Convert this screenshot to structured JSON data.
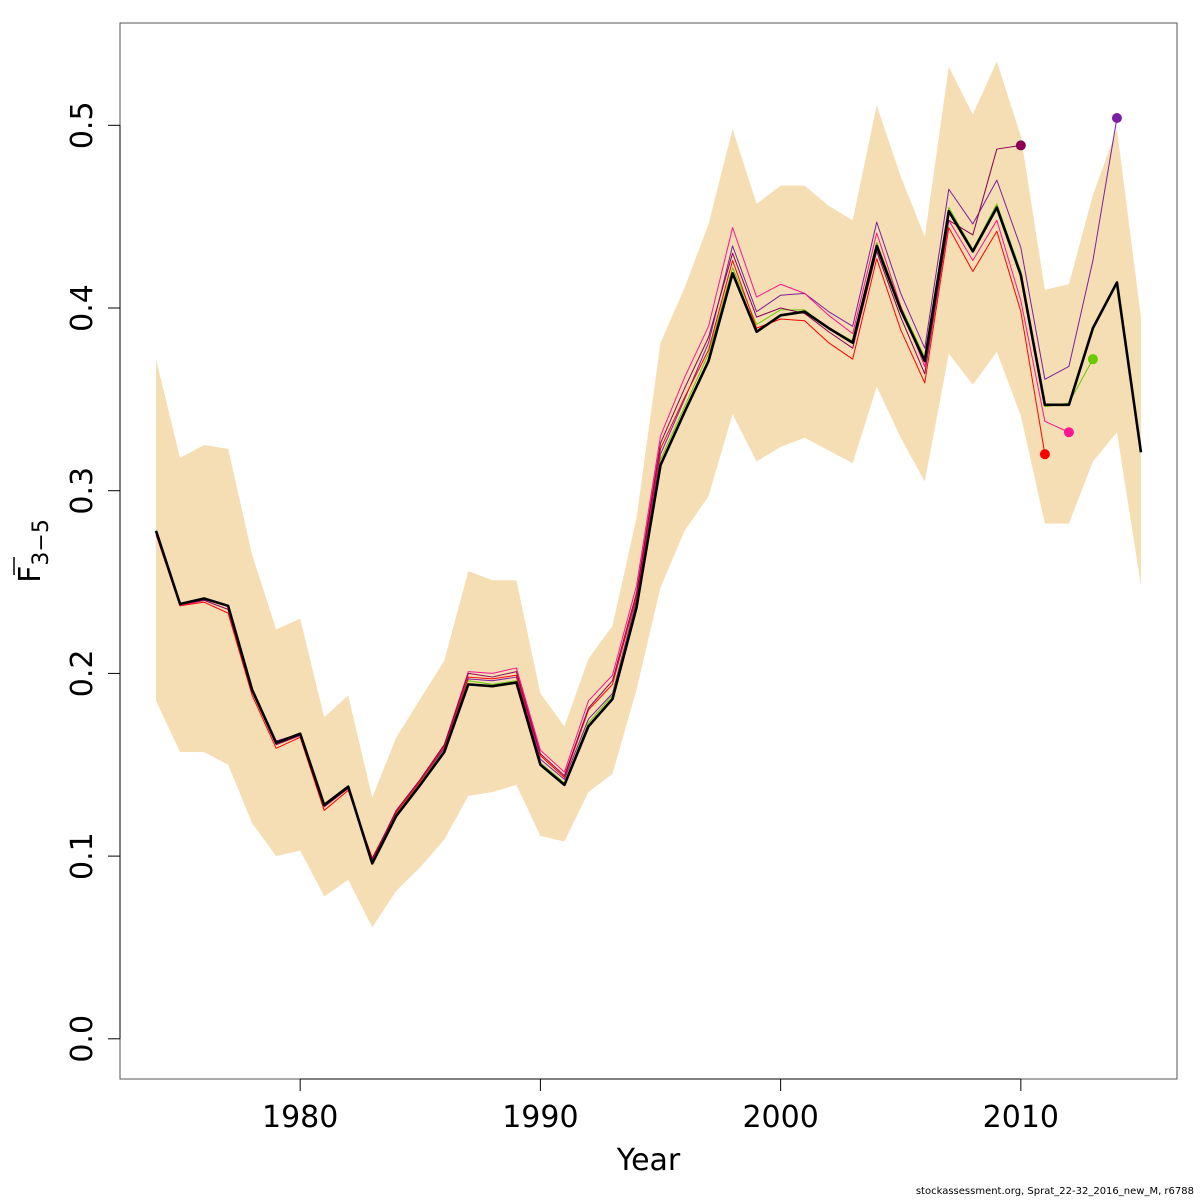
{
  "chart_data": {
    "type": "line",
    "title": "",
    "xlabel": "Year",
    "ylabel_main": "F",
    "ylabel_sub": "3−5",
    "xlim": [
      1972.5,
      2016.5
    ],
    "ylim": [
      -0.022,
      0.556
    ],
    "x_ticks": [
      1980,
      1990,
      2000,
      2010
    ],
    "x_tick_labels": [
      "1980",
      "1990",
      "2000",
      "2010"
    ],
    "y_ticks": [
      0.0,
      0.1,
      0.2,
      0.3,
      0.4,
      0.5
    ],
    "y_tick_labels": [
      "0.0",
      "0.1",
      "0.2",
      "0.3",
      "0.4",
      "0.5"
    ],
    "grid": false,
    "colors": {
      "band": "#f5deb3",
      "main": "#000000",
      "retro_2014": "#7b1fa2",
      "retro_2013": "#66cc00",
      "retro_2012": "#ff1493",
      "retro_2011": "#ff0000",
      "retro_2010": "#8b0057"
    },
    "confidence_band": {
      "x": [
        1974,
        1975,
        1976,
        1977,
        1978,
        1979,
        1980,
        1981,
        1982,
        1983,
        1984,
        1985,
        1986,
        1987,
        1988,
        1989,
        1990,
        1991,
        1992,
        1993,
        1994,
        1995,
        1996,
        1997,
        1998,
        1999,
        2000,
        2001,
        2002,
        2003,
        2004,
        2005,
        2006,
        2007,
        2008,
        2009,
        2010,
        2011,
        2012,
        2013,
        2014,
        2015
      ],
      "upper": [
        0.372,
        0.318,
        0.325,
        0.323,
        0.265,
        0.224,
        0.23,
        0.176,
        0.188,
        0.132,
        0.165,
        0.186,
        0.207,
        0.256,
        0.251,
        0.251,
        0.189,
        0.171,
        0.208,
        0.226,
        0.285,
        0.381,
        0.411,
        0.446,
        0.498,
        0.457,
        0.467,
        0.467,
        0.456,
        0.448,
        0.511,
        0.472,
        0.439,
        0.532,
        0.506,
        0.535,
        0.494,
        0.41,
        0.413,
        0.462,
        0.498,
        0.395
      ],
      "lower": [
        0.185,
        0.157,
        0.157,
        0.15,
        0.118,
        0.1,
        0.103,
        0.078,
        0.087,
        0.061,
        0.081,
        0.094,
        0.109,
        0.133,
        0.135,
        0.139,
        0.111,
        0.108,
        0.135,
        0.145,
        0.191,
        0.247,
        0.278,
        0.297,
        0.342,
        0.316,
        0.324,
        0.329,
        0.322,
        0.315,
        0.357,
        0.329,
        0.305,
        0.375,
        0.358,
        0.376,
        0.341,
        0.282,
        0.282,
        0.316,
        0.332,
        0.248
      ]
    },
    "series": [
      {
        "key": "main",
        "x": [
          1974,
          1975,
          1976,
          1977,
          1978,
          1979,
          1980,
          1981,
          1982,
          1983,
          1984,
          1985,
          1986,
          1987,
          1988,
          1989,
          1990,
          1991,
          1992,
          1993,
          1994,
          1995,
          1996,
          1997,
          1998,
          1999,
          2000,
          2001,
          2002,
          2003,
          2004,
          2005,
          2006,
          2007,
          2008,
          2009,
          2010,
          2011,
          2012,
          2013,
          2014,
          2015
        ],
        "values": [
          0.278,
          0.238,
          0.241,
          0.237,
          0.191,
          0.162,
          0.167,
          0.128,
          0.138,
          0.096,
          0.122,
          0.139,
          0.157,
          0.194,
          0.193,
          0.195,
          0.15,
          0.139,
          0.171,
          0.186,
          0.236,
          0.314,
          0.343,
          0.371,
          0.419,
          0.387,
          0.396,
          0.398,
          0.389,
          0.381,
          0.434,
          0.399,
          0.371,
          0.453,
          0.431,
          0.455,
          0.418,
          0.347,
          0.347,
          0.389,
          0.414,
          0.321
        ]
      },
      {
        "key": "retro_2014",
        "x": [
          1974,
          1975,
          1976,
          1977,
          1978,
          1979,
          1980,
          1981,
          1982,
          1983,
          1984,
          1985,
          1986,
          1987,
          1988,
          1989,
          1990,
          1991,
          1992,
          1993,
          1994,
          1995,
          1996,
          1997,
          1998,
          1999,
          2000,
          2001,
          2002,
          2003,
          2004,
          2005,
          2006,
          2007,
          2008,
          2009,
          2010,
          2011,
          2012,
          2013,
          2014
        ],
        "values": [
          0.278,
          0.238,
          0.241,
          0.237,
          0.192,
          0.163,
          0.167,
          0.128,
          0.138,
          0.097,
          0.124,
          0.141,
          0.159,
          0.197,
          0.196,
          0.198,
          0.153,
          0.142,
          0.175,
          0.189,
          0.24,
          0.32,
          0.35,
          0.381,
          0.434,
          0.398,
          0.407,
          0.408,
          0.398,
          0.39,
          0.447,
          0.408,
          0.378,
          0.465,
          0.446,
          0.47,
          0.433,
          0.361,
          0.368,
          0.426,
          0.504
        ]
      },
      {
        "key": "retro_2013",
        "x": [
          1974,
          1975,
          1976,
          1977,
          1978,
          1979,
          1980,
          1981,
          1982,
          1983,
          1984,
          1985,
          1986,
          1987,
          1988,
          1989,
          1990,
          1991,
          1992,
          1993,
          1994,
          1995,
          1996,
          1997,
          1998,
          1999,
          2000,
          2001,
          2002,
          2003,
          2004,
          2005,
          2006,
          2007,
          2008,
          2009,
          2010,
          2011,
          2012,
          2013
        ],
        "values": [
          0.278,
          0.238,
          0.241,
          0.237,
          0.191,
          0.162,
          0.167,
          0.128,
          0.138,
          0.097,
          0.123,
          0.14,
          0.158,
          0.196,
          0.194,
          0.196,
          0.151,
          0.14,
          0.173,
          0.188,
          0.238,
          0.317,
          0.346,
          0.375,
          0.422,
          0.391,
          0.399,
          0.399,
          0.389,
          0.382,
          0.436,
          0.401,
          0.373,
          0.455,
          0.432,
          0.457,
          0.42,
          0.346,
          0.348,
          0.372
        ]
      },
      {
        "key": "retro_2012",
        "x": [
          1974,
          1975,
          1976,
          1977,
          1978,
          1979,
          1980,
          1981,
          1982,
          1983,
          1984,
          1985,
          1986,
          1987,
          1988,
          1989,
          1990,
          1991,
          1992,
          1993,
          1994,
          1995,
          1996,
          1997,
          1998,
          1999,
          2000,
          2001,
          2002,
          2003,
          2004,
          2005,
          2006,
          2007,
          2008,
          2009,
          2010,
          2011,
          2012
        ],
        "values": [
          0.277,
          0.237,
          0.24,
          0.235,
          0.19,
          0.161,
          0.166,
          0.127,
          0.137,
          0.098,
          0.125,
          0.142,
          0.161,
          0.201,
          0.2,
          0.203,
          0.158,
          0.146,
          0.185,
          0.199,
          0.248,
          0.33,
          0.362,
          0.39,
          0.444,
          0.406,
          0.413,
          0.408,
          0.396,
          0.386,
          0.441,
          0.401,
          0.368,
          0.448,
          0.426,
          0.448,
          0.404,
          0.338,
          0.332
        ]
      },
      {
        "key": "retro_2011",
        "x": [
          1974,
          1975,
          1976,
          1977,
          1978,
          1979,
          1980,
          1981,
          1982,
          1983,
          1984,
          1985,
          1986,
          1987,
          1988,
          1989,
          1990,
          1991,
          1992,
          1993,
          1994,
          1995,
          1996,
          1997,
          1998,
          1999,
          2000,
          2001,
          2002,
          2003,
          2004,
          2005,
          2006,
          2007,
          2008,
          2009,
          2010,
          2011
        ],
        "values": [
          0.276,
          0.237,
          0.239,
          0.233,
          0.188,
          0.159,
          0.165,
          0.125,
          0.136,
          0.099,
          0.124,
          0.141,
          0.16,
          0.198,
          0.197,
          0.199,
          0.155,
          0.143,
          0.18,
          0.194,
          0.242,
          0.323,
          0.351,
          0.377,
          0.426,
          0.389,
          0.394,
          0.393,
          0.381,
          0.372,
          0.427,
          0.388,
          0.359,
          0.444,
          0.42,
          0.442,
          0.398,
          0.32
        ]
      },
      {
        "key": "retro_2010",
        "x": [
          1974,
          1975,
          1976,
          1977,
          1978,
          1979,
          1980,
          1981,
          1982,
          1983,
          1984,
          1985,
          1986,
          1987,
          1988,
          1989,
          1990,
          1991,
          1992,
          1993,
          1994,
          1995,
          1996,
          1997,
          1998,
          1999,
          2000,
          2001,
          2002,
          2003,
          2004,
          2005,
          2006,
          2007,
          2008,
          2009,
          2010
        ],
        "values": [
          0.277,
          0.238,
          0.24,
          0.235,
          0.19,
          0.161,
          0.166,
          0.127,
          0.137,
          0.098,
          0.125,
          0.142,
          0.161,
          0.2,
          0.198,
          0.201,
          0.156,
          0.144,
          0.181,
          0.196,
          0.244,
          0.326,
          0.356,
          0.384,
          0.43,
          0.395,
          0.4,
          0.397,
          0.387,
          0.378,
          0.431,
          0.395,
          0.364,
          0.448,
          0.44,
          0.487,
          0.489
        ]
      }
    ],
    "footer": "stockassessment.org, Sprat_22-32_2016_new_M, r6788"
  }
}
